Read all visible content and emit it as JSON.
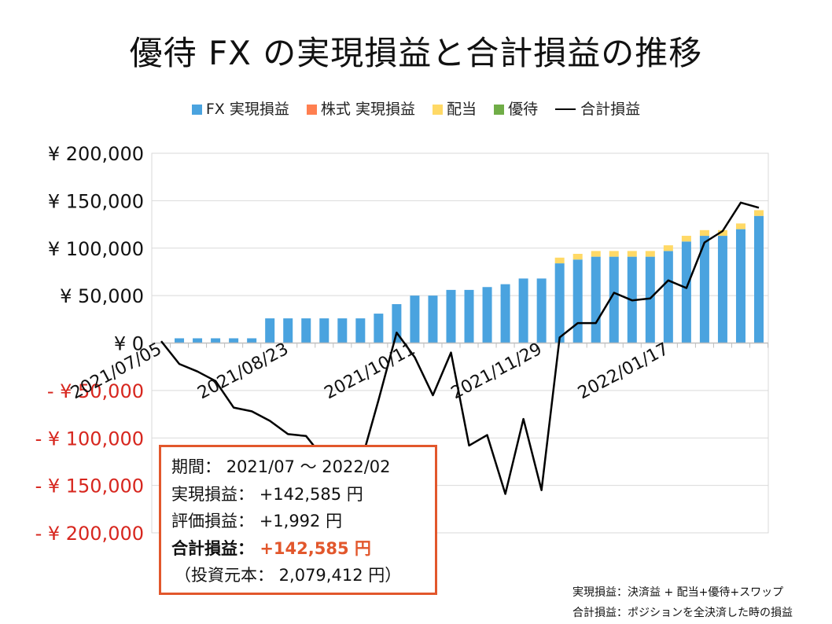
{
  "title": "優待 FX の実現損益と合計損益の推移",
  "legend": {
    "fx": "FX 実現損益",
    "stock": "株式 実現損益",
    "dividend": "配当",
    "yutai": "優待",
    "total": "合計損益"
  },
  "colors": {
    "fx": "#4aa3df",
    "stock": "#ff7f50",
    "dividend": "#ffd966",
    "yutai": "#70ad47",
    "total": "#000000",
    "negative_label": "#d7261e",
    "accent": "#e2572c"
  },
  "chart_data": {
    "type": "bar",
    "stacked": true,
    "ylim": [
      -200000,
      200000
    ],
    "y_ticks": [
      {
        "value": 200000,
        "label": "¥ 200,000"
      },
      {
        "value": 150000,
        "label": "¥ 150,000"
      },
      {
        "value": 100000,
        "label": "¥ 100,000"
      },
      {
        "value": 50000,
        "label": "¥ 50,000"
      },
      {
        "value": 0,
        "label": "¥ 0"
      },
      {
        "value": -50000,
        "label": "- ¥ 50,000"
      },
      {
        "value": -100000,
        "label": "- ¥ 100,000"
      },
      {
        "value": -150000,
        "label": "- ¥ 150,000"
      },
      {
        "value": -200000,
        "label": "- ¥ 200,000"
      }
    ],
    "x_tick_labels": [
      {
        "index": 0,
        "label": "2021/07/05"
      },
      {
        "index": 7,
        "label": "2021/08/23"
      },
      {
        "index": 14,
        "label": "2021/10/11"
      },
      {
        "index": 21,
        "label": "2021/11/29"
      },
      {
        "index": 28,
        "label": "2022/01/17"
      }
    ],
    "series": [
      {
        "name": "FX 実現損益",
        "key": "fx",
        "values": [
          0,
          5000,
          5000,
          5000,
          5000,
          5000,
          26000,
          26000,
          26000,
          26000,
          26000,
          26000,
          31000,
          41000,
          50000,
          50000,
          56000,
          56000,
          59000,
          62000,
          68000,
          68000,
          84000,
          88000,
          91000,
          91000,
          91000,
          91000,
          97000,
          107000,
          113000,
          113000,
          120000,
          134000
        ]
      },
      {
        "name": "株式 実現損益",
        "key": "stock",
        "values": [
          0,
          0,
          0,
          0,
          0,
          0,
          0,
          0,
          0,
          0,
          0,
          0,
          0,
          0,
          0,
          0,
          0,
          0,
          0,
          0,
          0,
          0,
          0,
          0,
          0,
          0,
          0,
          0,
          0,
          0,
          0,
          0,
          0,
          0
        ]
      },
      {
        "name": "配当",
        "key": "dividend",
        "values": [
          0,
          0,
          0,
          0,
          0,
          0,
          0,
          0,
          0,
          0,
          0,
          0,
          0,
          0,
          0,
          0,
          0,
          0,
          0,
          0,
          0,
          0,
          6000,
          6000,
          6000,
          6000,
          6000,
          6000,
          6000,
          6000,
          6000,
          6000,
          6000,
          6000
        ]
      },
      {
        "name": "優待",
        "key": "yutai",
        "values": [
          0,
          0,
          0,
          0,
          0,
          0,
          0,
          0,
          0,
          0,
          0,
          0,
          0,
          0,
          0,
          0,
          0,
          0,
          0,
          0,
          0,
          0,
          0,
          0,
          0,
          0,
          0,
          0,
          0,
          0,
          0,
          0,
          0,
          0
        ]
      },
      {
        "name": "合計損益",
        "key": "total",
        "type": "line",
        "values": [
          2000,
          -22000,
          -30000,
          -40000,
          -68000,
          -72000,
          -82000,
          -96000,
          -98000,
          -122000,
          -130000,
          -128000,
          -60000,
          11000,
          -15000,
          -55000,
          -10000,
          -108000,
          -97000,
          -159000,
          -80000,
          -155000,
          6000,
          21000,
          21000,
          53000,
          45000,
          47000,
          66000,
          58000,
          106000,
          118000,
          148000,
          142585
        ]
      }
    ]
  },
  "info": {
    "period_label": "期間：",
    "period_value": "2021/07 ～ 2022/02",
    "realized_label": "実現損益：",
    "realized_value": "+142,585 円",
    "unrealized_label": "評価損益：",
    "unrealized_value": "+1,992 円",
    "total_label": "合計損益：",
    "total_value": "+142,585 円",
    "principal": "（投資元本： 2,079,412 円）"
  },
  "notes": {
    "line1": "実現損益：決済益 + 配当+優待+スワップ",
    "line2": "合計損益：ポジションを全決済した時の損益"
  }
}
